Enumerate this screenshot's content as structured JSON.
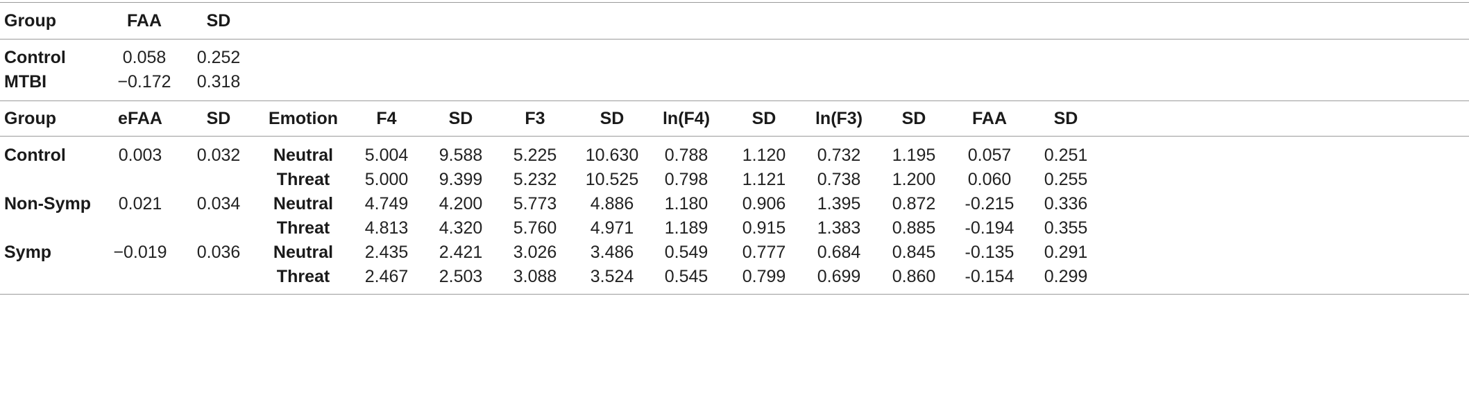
{
  "table1": {
    "headers": [
      "Group",
      "FAA",
      "SD"
    ],
    "rows": [
      {
        "group": "Control",
        "faa": "0.058",
        "sd": "0.252"
      },
      {
        "group": "MTBI",
        "faa": "−0.172",
        "sd": "0.318"
      }
    ]
  },
  "table2": {
    "headers": [
      "Group",
      "eFAA",
      "SD",
      "Emotion",
      "F4",
      "SD",
      "F3",
      "SD",
      "ln(F4)",
      "SD",
      "ln(F3)",
      "SD",
      "FAA",
      "SD"
    ],
    "rows": [
      {
        "group": "Control",
        "efaa": "0.003",
        "sd": "0.032",
        "emotion": "Neutral",
        "values": [
          "5.004",
          "9.588",
          "5.225",
          "10.630",
          "0.788",
          "1.120",
          "0.732",
          "1.195",
          "0.057",
          "0.251"
        ]
      },
      {
        "group": "",
        "efaa": "",
        "sd": "",
        "emotion": "Threat",
        "values": [
          "5.000",
          "9.399",
          "5.232",
          "10.525",
          "0.798",
          "1.121",
          "0.738",
          "1.200",
          "0.060",
          "0.255"
        ]
      },
      {
        "group": "Non-Symp",
        "efaa": "0.021",
        "sd": "0.034",
        "emotion": "Neutral",
        "values": [
          "4.749",
          "4.200",
          "5.773",
          "4.886",
          "1.180",
          "0.906",
          "1.395",
          "0.872",
          "-0.215",
          "0.336"
        ]
      },
      {
        "group": "",
        "efaa": "",
        "sd": "",
        "emotion": "Threat",
        "values": [
          "4.813",
          "4.320",
          "5.760",
          "4.971",
          "1.189",
          "0.915",
          "1.383",
          "0.885",
          "-0.194",
          "0.355"
        ]
      },
      {
        "group": "Symp",
        "efaa": "−0.019",
        "sd": "0.036",
        "emotion": "Neutral",
        "values": [
          "2.435",
          "2.421",
          "3.026",
          "3.486",
          "0.549",
          "0.777",
          "0.684",
          "0.845",
          "-0.135",
          "0.291"
        ]
      },
      {
        "group": "",
        "efaa": "",
        "sd": "",
        "emotion": "Threat",
        "values": [
          "2.467",
          "2.503",
          "3.088",
          "3.524",
          "0.545",
          "0.799",
          "0.699",
          "0.860",
          "-0.154",
          "0.299"
        ]
      }
    ]
  }
}
